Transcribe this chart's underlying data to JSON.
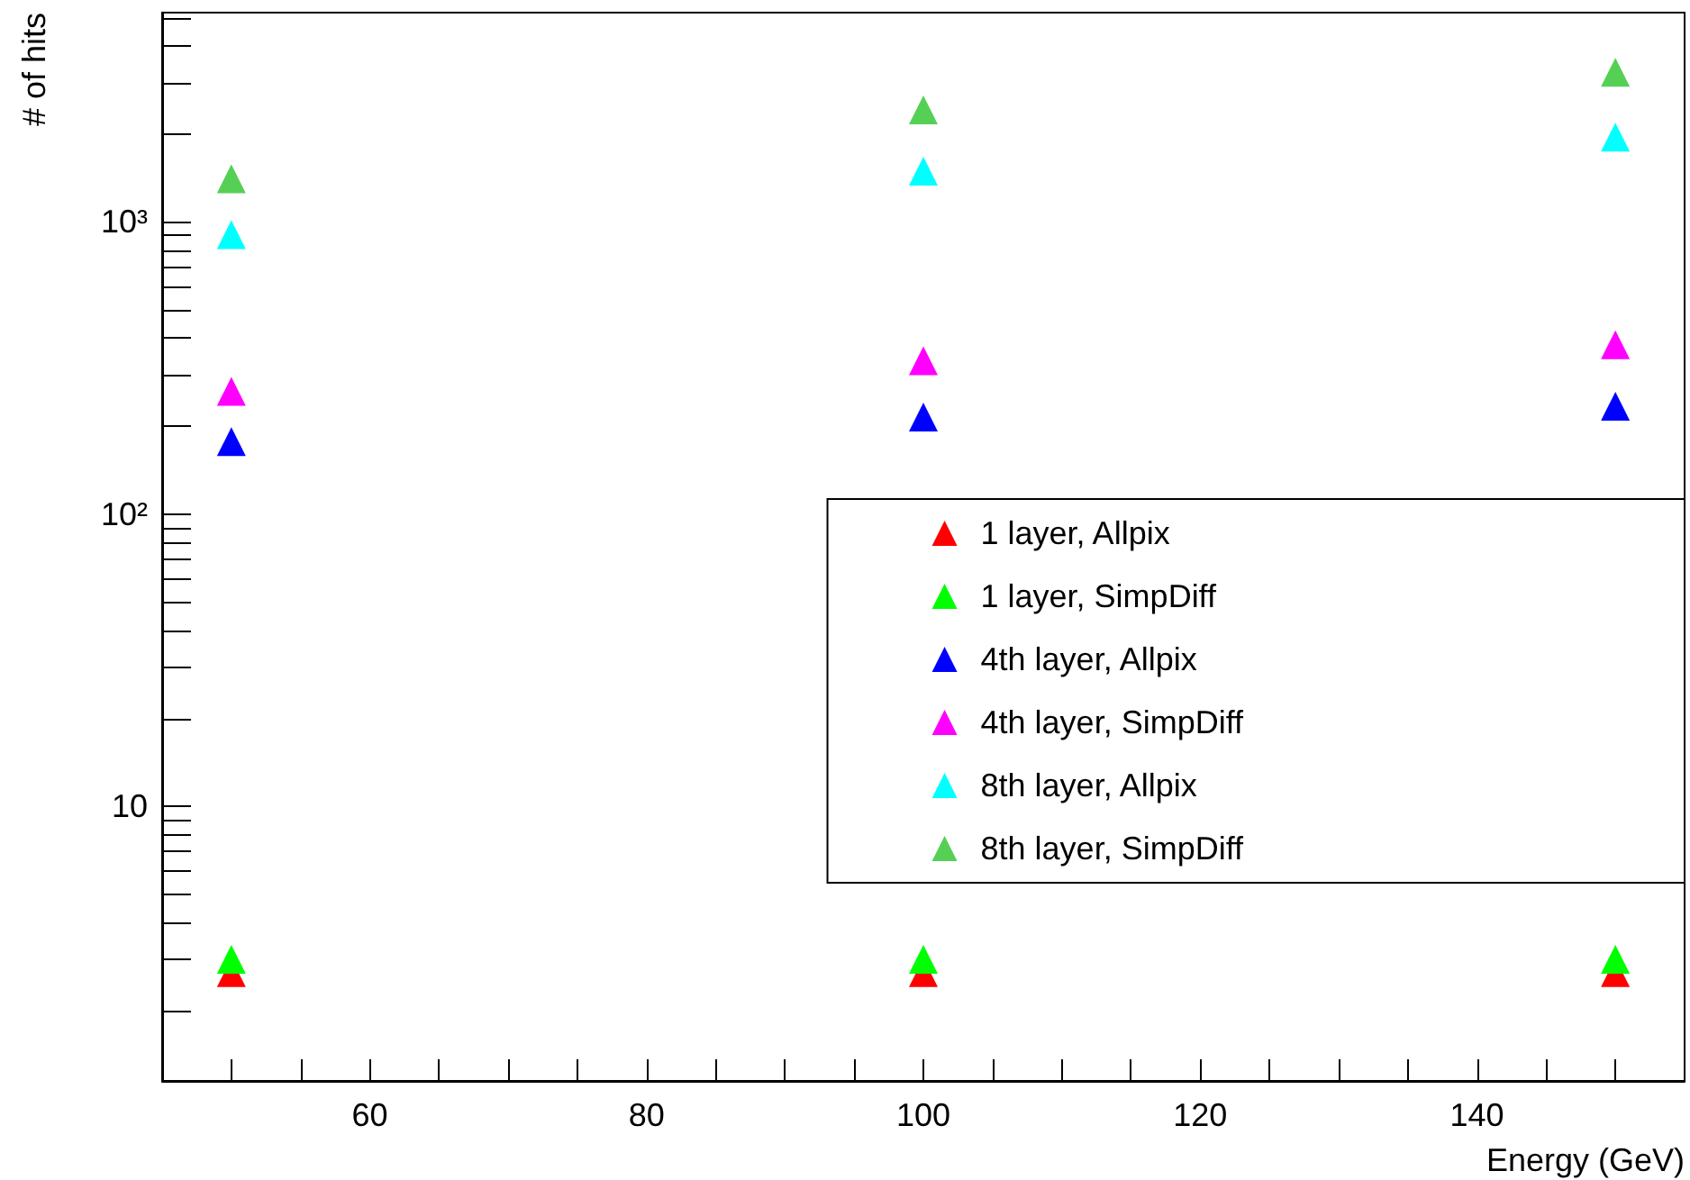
{
  "chart_data": {
    "type": "scatter",
    "xlabel": "Energy (GeV)",
    "ylabel": "# of hits",
    "log": "y",
    "grid": false,
    "legend": "bottom right",
    "marker": "triangle",
    "x": [
      50,
      100,
      150
    ],
    "xlim": [
      45,
      155
    ],
    "xticks": [
      {
        "value": 50,
        "label": null
      },
      {
        "value": 55,
        "label": null
      },
      60,
      {
        "value": 65,
        "label": null
      },
      {
        "value": 70,
        "label": null
      },
      {
        "value": 75,
        "label": null
      },
      80,
      {
        "value": 85,
        "label": null
      },
      {
        "value": 90,
        "label": null
      },
      {
        "value": 95,
        "label": null
      },
      100,
      {
        "value": 105,
        "label": null
      },
      {
        "value": 110,
        "label": null
      },
      {
        "value": 115,
        "label": null
      },
      120,
      {
        "value": 125,
        "label": null
      },
      {
        "value": 130,
        "label": null
      },
      {
        "value": 135,
        "label": null
      },
      140,
      {
        "value": 145,
        "label": null
      },
      {
        "value": 150,
        "label": null
      }
    ],
    "ylim": [
      1.15,
      5200
    ],
    "yticks": [
      {
        "value": 2,
        "label": null
      },
      {
        "value": 3,
        "label": null
      },
      {
        "value": 4,
        "label": null
      },
      {
        "value": 5,
        "label": null
      },
      {
        "value": 6,
        "label": null
      },
      {
        "value": 7,
        "label": null
      },
      {
        "value": 8,
        "label": null
      },
      {
        "value": 9,
        "label": null
      },
      10,
      {
        "value": 20,
        "label": null
      },
      {
        "value": 30,
        "label": null
      },
      {
        "value": 40,
        "label": null
      },
      {
        "value": 50,
        "label": null
      },
      {
        "value": 60,
        "label": null
      },
      {
        "value": 70,
        "label": null
      },
      {
        "value": 80,
        "label": null
      },
      {
        "value": 90,
        "label": null
      },
      {
        "value": 100,
        "label": "10²"
      },
      {
        "value": 200,
        "label": null
      },
      {
        "value": 300,
        "label": null
      },
      {
        "value": 400,
        "label": null
      },
      {
        "value": 500,
        "label": null
      },
      {
        "value": 600,
        "label": null
      },
      {
        "value": 700,
        "label": null
      },
      {
        "value": 800,
        "label": null
      },
      {
        "value": 900,
        "label": null
      },
      {
        "value": 1000,
        "label": "10³"
      },
      {
        "value": 2000,
        "label": null
      },
      {
        "value": 3000,
        "label": null
      },
      {
        "value": 4000,
        "label": null
      },
      {
        "value": 5000,
        "label": null
      }
    ],
    "series": [
      {
        "name": "1 layer, Allpix",
        "color": "#ff0000",
        "values": [
          2.7,
          2.7,
          2.7
        ]
      },
      {
        "name": "1 layer, SimpDiff",
        "color": "#00ff00",
        "values": [
          3.0,
          3.0,
          3.0
        ]
      },
      {
        "name": "4th layer, Allpix",
        "color": "#0000ff",
        "values": [
          177,
          215,
          234
        ]
      },
      {
        "name": "4th layer, SimpDiff",
        "color": "#ff00ff",
        "values": [
          263,
          335,
          380
        ]
      },
      {
        "name": "8th layer, Allpix",
        "color": "#00ffff",
        "values": [
          905,
          1490,
          1950
        ]
      },
      {
        "name": "8th layer, SimpDiff",
        "color": "#55d055",
        "values": [
          1405,
          2415,
          3250
        ]
      }
    ]
  }
}
